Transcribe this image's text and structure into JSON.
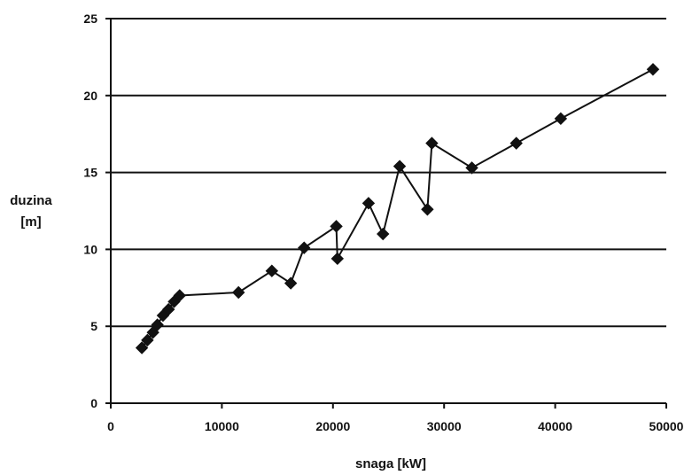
{
  "chart_data": {
    "type": "line",
    "xlabel": "snaga [kW]",
    "ylabel": [
      "duzina",
      "[m]"
    ],
    "xlim": [
      0,
      50000
    ],
    "ylim": [
      0,
      25
    ],
    "xticks": [
      0,
      10000,
      20000,
      30000,
      40000,
      50000
    ],
    "yticks": [
      0,
      5,
      10,
      15,
      20,
      25
    ],
    "grid": "horizontal",
    "marker": "diamond",
    "series": [
      {
        "x": [
          2800,
          3300,
          3800,
          4200,
          4700,
          5200,
          5700,
          6200,
          11500,
          14500,
          16200,
          17400,
          20300,
          20400,
          23200,
          24500,
          26000,
          28500,
          28900,
          32500,
          36500,
          40500,
          48800
        ],
        "values": [
          3.6,
          4.1,
          4.6,
          5.1,
          5.7,
          6.1,
          6.6,
          7.0,
          7.2,
          8.6,
          7.8,
          10.1,
          11.5,
          9.4,
          13.0,
          11.0,
          15.4,
          12.6,
          16.9,
          15.3,
          16.9,
          18.5,
          21.7
        ]
      }
    ]
  }
}
